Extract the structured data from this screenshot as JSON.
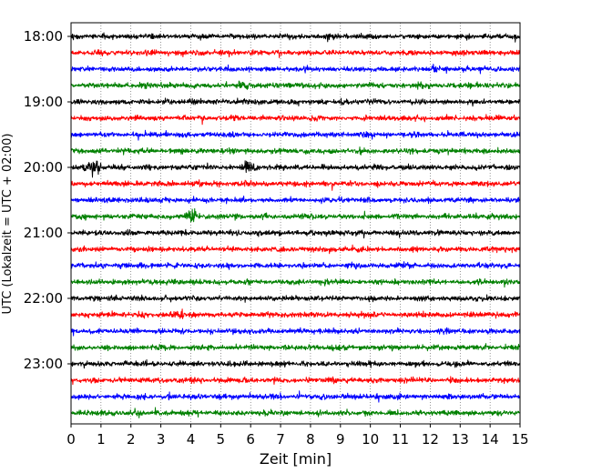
{
  "chart_data": {
    "type": "line",
    "subtype": "helicorder",
    "title": "",
    "xlabel": "Zeit  [min]",
    "ylabel": "UTC (Lokalzeit = UTC + 02:00)",
    "xlim": [
      0,
      15
    ],
    "x_ticks": [
      0,
      1,
      2,
      3,
      4,
      5,
      6,
      7,
      8,
      9,
      10,
      11,
      12,
      13,
      14,
      15
    ],
    "y_tick_labels": [
      "18:00",
      "19:00",
      "20:00",
      "21:00",
      "22:00",
      "23:00"
    ],
    "trace_start_times": [
      "18:00",
      "18:15",
      "18:30",
      "18:45",
      "19:00",
      "19:15",
      "19:30",
      "19:45",
      "20:00",
      "20:15",
      "20:30",
      "20:45",
      "21:00",
      "21:15",
      "21:30",
      "21:45",
      "22:00",
      "22:15",
      "22:30",
      "22:45",
      "23:00",
      "23:15",
      "23:30",
      "23:45"
    ],
    "line_colors": [
      "#000000",
      "#ff0000",
      "#0000ff",
      "#008000"
    ],
    "grid": "vertical dotted lines at every minute",
    "legend": "none"
  }
}
